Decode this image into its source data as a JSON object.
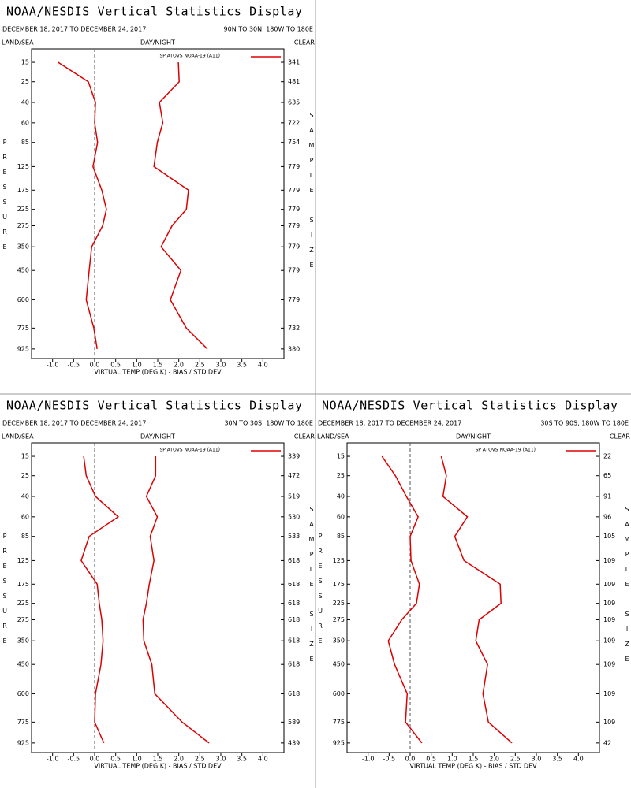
{
  "chart_data": [
    {
      "type": "line",
      "title": "NOAA/NESDIS Vertical Statistics Display",
      "subtitle": "DECEMBER 18, 2017 TO DECEMBER 24, 2017",
      "region": "90N TO 30N, 180W TO 180E",
      "land_sea": "LAND/SEA",
      "day_night": "DAY/NIGHT",
      "clear": "CLEAR",
      "xlabel": "VIRTUAL TEMP (DEG K) - BIAS / STD DEV",
      "ylabel": "PRESSURE",
      "y2label": "SAMPLE SIZE",
      "y": [
        15,
        25,
        40,
        60,
        85,
        125,
        175,
        225,
        275,
        350,
        450,
        600,
        775,
        925
      ],
      "series": [
        {
          "name": "SP ATOVS NOAA-19 (A11)",
          "color": "#dd0000",
          "values": [
            -0.87,
            -0.15,
            0.02,
            0.0,
            0.07,
            -0.04,
            0.17,
            0.28,
            0.19,
            -0.07,
            -0.13,
            -0.2,
            -0.02,
            0.06
          ]
        },
        {
          "color": "#dd0000",
          "values": [
            1.99,
            2.01,
            1.54,
            1.62,
            1.49,
            1.41,
            2.23,
            2.18,
            1.84,
            1.58,
            2.05,
            1.8,
            2.18,
            2.68
          ]
        }
      ],
      "sample_sizes": [
        341,
        481,
        635,
        722,
        754,
        779,
        779,
        779,
        779,
        779,
        779,
        779,
        732,
        380
      ],
      "xlim": [
        -1.5,
        4.5
      ],
      "xticks": [
        {
          "value": -1,
          "label": "-1.0"
        },
        -0.5,
        {
          "value": 0,
          "label": "0.0"
        },
        0.5,
        {
          "value": 1,
          "label": "1.0"
        },
        1.5,
        {
          "value": 2,
          "label": "2.0"
        },
        2.5,
        {
          "value": 3,
          "label": "3.0"
        },
        3.5,
        {
          "value": 4,
          "label": "4.0"
        }
      ],
      "ylim": [
        1000,
        10
      ],
      "yticks": [
        15,
        25,
        40,
        60,
        85,
        125,
        175,
        225,
        275,
        350,
        450,
        600,
        775,
        925
      ]
    },
    {
      "type": "line",
      "title": "NOAA/NESDIS Vertical Statistics Display",
      "subtitle": "DECEMBER 18, 2017 TO DECEMBER 24, 2017",
      "region": "30N TO 30S, 180W TO 180E",
      "land_sea": "LAND/SEA",
      "day_night": "DAY/NIGHT",
      "clear": "CLEAR",
      "xlabel": "VIRTUAL TEMP (DEG K) - BIAS / STD DEV",
      "ylabel": "PRESSURE",
      "y2label": "SAMPLE SIZE",
      "y": [
        15,
        25,
        40,
        60,
        85,
        125,
        175,
        225,
        275,
        350,
        450,
        600,
        775,
        925
      ],
      "series": [
        {
          "name": "SP ATOVS NOAA-19 (A11)",
          "color": "#dd0000",
          "values": [
            -0.26,
            -0.2,
            0.02,
            0.56,
            -0.13,
            -0.32,
            0.06,
            0.11,
            0.17,
            0.2,
            0.15,
            0.02,
            0.0,
            0.22
          ]
        },
        {
          "color": "#dd0000",
          "values": [
            1.45,
            1.45,
            1.23,
            1.49,
            1.32,
            1.41,
            1.3,
            1.23,
            1.15,
            1.17,
            1.36,
            1.43,
            2.08,
            2.72
          ]
        }
      ],
      "sample_sizes": [
        339,
        472,
        519,
        530,
        533,
        618,
        618,
        618,
        618,
        618,
        618,
        618,
        589,
        439
      ],
      "xlim": [
        -1.5,
        4.5
      ],
      "xticks": [
        {
          "value": -1,
          "label": "-1.0"
        },
        -0.5,
        {
          "value": 0,
          "label": "0.0"
        },
        0.5,
        {
          "value": 1,
          "label": "1.0"
        },
        1.5,
        {
          "value": 2,
          "label": "2.0"
        },
        2.5,
        {
          "value": 3,
          "label": "3.0"
        },
        3.5,
        {
          "value": 4,
          "label": "4.0"
        }
      ],
      "ylim": [
        1000,
        10
      ],
      "yticks": [
        15,
        25,
        40,
        60,
        85,
        125,
        175,
        225,
        275,
        350,
        450,
        600,
        775,
        925
      ]
    },
    {
      "type": "line",
      "title": "NOAA/NESDIS Vertical Statistics Display",
      "subtitle": "DECEMBER 18, 2017 TO DECEMBER 24, 2017",
      "region": "30S TO 90S, 180W TO 180E",
      "land_sea": "LAND/SEA",
      "day_night": "DAY/NIGHT",
      "clear": "CLEAR",
      "xlabel": "VIRTUAL TEMP (DEG K) - BIAS / STD DEV",
      "ylabel": "PRESSURE",
      "y2label": "SAMPLE SIZE",
      "y": [
        15,
        25,
        40,
        60,
        85,
        125,
        175,
        225,
        275,
        350,
        450,
        600,
        775,
        925
      ],
      "series": [
        {
          "name": "SP ATOVS NOAA-19 (A11)",
          "color": "#dd0000",
          "values": [
            -0.67,
            -0.35,
            -0.09,
            0.19,
            0.0,
            0.02,
            0.22,
            0.15,
            -0.2,
            -0.52,
            -0.37,
            -0.07,
            -0.11,
            0.28
          ]
        },
        {
          "color": "#dd0000",
          "values": [
            0.74,
            0.86,
            0.78,
            1.36,
            1.06,
            1.28,
            2.14,
            2.16,
            1.64,
            1.56,
            1.84,
            1.73,
            1.86,
            2.42
          ]
        }
      ],
      "sample_sizes": [
        22,
        65,
        91,
        96,
        105,
        109,
        109,
        109,
        109,
        109,
        109,
        109,
        109,
        42
      ],
      "xlim": [
        -1.5,
        4.5
      ],
      "xticks": [
        {
          "value": -1,
          "label": "-1.0"
        },
        -0.5,
        {
          "value": 0,
          "label": "0.0"
        },
        0.5,
        {
          "value": 1,
          "label": "1.0"
        },
        1.5,
        {
          "value": 2,
          "label": "2.0"
        },
        2.5,
        {
          "value": 3,
          "label": "3.0"
        },
        3.5,
        {
          "value": 4,
          "label": "4.0"
        }
      ],
      "ylim": [
        1000,
        10
      ],
      "yticks": [
        15,
        25,
        40,
        60,
        85,
        125,
        175,
        225,
        275,
        350,
        450,
        600,
        775,
        925
      ]
    }
  ]
}
